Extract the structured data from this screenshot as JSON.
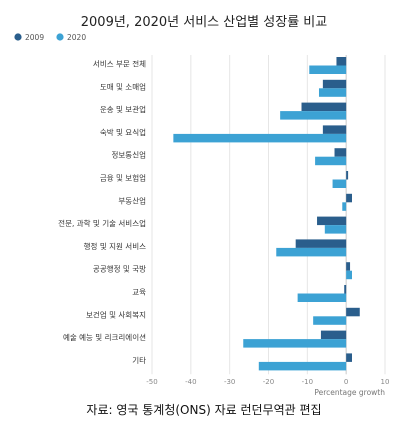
{
  "title": "2009년, 2020년 서비스 산업별 성장률 비교",
  "caption": "자료: 영국 통계청(ONS) 자료 런던무역관 편집",
  "chart_data": {
    "type": "bar",
    "orientation": "horizontal",
    "title": "2009년, 2020년 서비스 산업별 성장률 비교",
    "xlabel": "Percentage growth",
    "ylabel": "",
    "xlim": [
      -50,
      10
    ],
    "xticks": [
      -50,
      -40,
      -30,
      -20,
      -10,
      0,
      10
    ],
    "grid": true,
    "legend_position": "top-left",
    "categories": [
      "서비스 부문 전체",
      "도매 및 소매업",
      "운송 및 보관업",
      "숙박 및 요식업",
      "정보통신업",
      "금융 및 보험업",
      "부동산업",
      "전문, 과학 및 기술 서비스업",
      "행정 및 지원 서비스",
      "공공행정 및 국방",
      "교육",
      "보건업 및 사회복지",
      "예술 예능 및 리크리에이션",
      "기타"
    ],
    "series": [
      {
        "name": "2009",
        "color": "#2a5e8c",
        "values": [
          -2.5,
          -6,
          -11.5,
          -6,
          -3,
          0.5,
          1.5,
          -7.5,
          -13,
          1,
          -0.5,
          3.5,
          -6.5,
          1.5
        ]
      },
      {
        "name": "2020",
        "color": "#3ca2d4",
        "values": [
          -9.5,
          -7,
          -17,
          -44.5,
          -8,
          -3.5,
          -1,
          -5.5,
          -18,
          1.5,
          -12.5,
          -8.5,
          -26.5,
          -22.5
        ]
      }
    ]
  }
}
